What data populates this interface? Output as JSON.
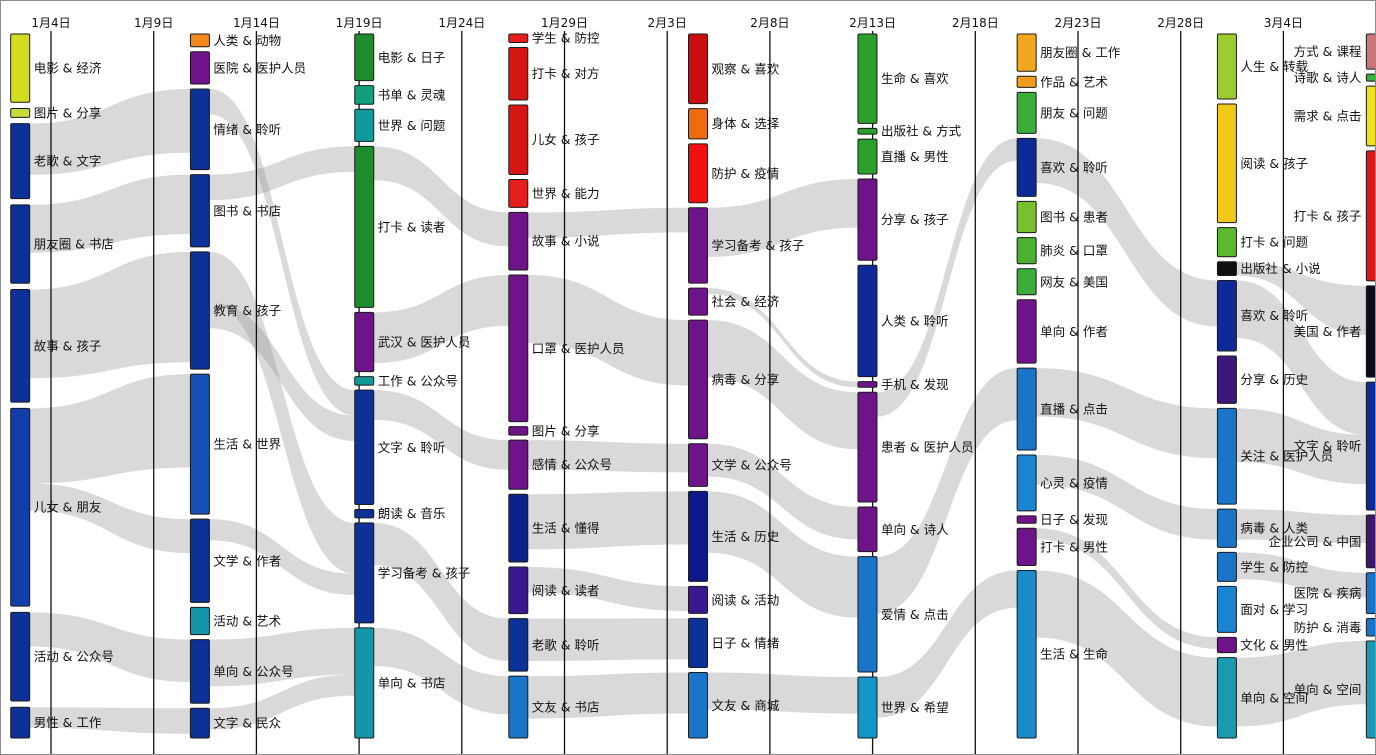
{
  "chart_data": {
    "type": "sankey",
    "axis": {
      "dates": [
        "1月4日",
        "1月9日",
        "1月14日",
        "1月19日",
        "1月24日",
        "1月29日",
        "2月3日",
        "2月8日",
        "2月13日",
        "2月18日",
        "2月23日",
        "2月28日",
        "3月4日"
      ]
    },
    "columns": [
      {
        "date": "1月4日",
        "nodes": [
          {
            "label": "电影 & 经济",
            "value": 1.0,
            "color": "#d4dc20"
          },
          {
            "label": "图片 & 分享",
            "value": 0.13,
            "color": "#c8da3c"
          },
          {
            "label": "老歌 & 文字",
            "value": 1.1,
            "color": "#0d3196"
          },
          {
            "label": "朋友圈 & 书店",
            "value": 1.15,
            "color": "#0d3196"
          },
          {
            "label": "故事 & 孩子",
            "value": 1.65,
            "color": "#0d3196"
          },
          {
            "label": "儿女 & 朋友",
            "value": 2.9,
            "color": "#123ca8"
          },
          {
            "label": "活动 & 公众号",
            "value": 1.3,
            "color": "#0d3196"
          },
          {
            "label": "男性 & 工作",
            "value": 0.45,
            "color": "#0d3196"
          }
        ]
      },
      {
        "date": "1月14日",
        "nodes": [
          {
            "label": "人类 & 动物",
            "value": 0.15,
            "color": "#f08a1a"
          },
          {
            "label": "医院 & 医护人员",
            "value": 0.38,
            "color": "#6d1489"
          },
          {
            "label": "情绪 & 聆听",
            "value": 0.95,
            "color": "#0d3196"
          },
          {
            "label": "图书 & 书店",
            "value": 0.85,
            "color": "#0d3196"
          },
          {
            "label": "教育 & 孩子",
            "value": 1.38,
            "color": "#0d3196"
          },
          {
            "label": "生活 & 世界",
            "value": 1.65,
            "color": "#1a4fb5"
          },
          {
            "label": "文学 & 作者",
            "value": 0.98,
            "color": "#0d3196"
          },
          {
            "label": "活动 & 艺术",
            "value": 0.32,
            "color": "#1496a8"
          },
          {
            "label": "单向 & 公众号",
            "value": 0.75,
            "color": "#0d3196"
          },
          {
            "label": "文字 & 民众",
            "value": 0.35,
            "color": "#0d3196"
          }
        ]
      },
      {
        "date": "1月19日",
        "nodes": [
          {
            "label": "电影 & 日子",
            "value": 0.55,
            "color": "#1e8c2c"
          },
          {
            "label": "书单 & 灵魂",
            "value": 0.22,
            "color": "#12a07a"
          },
          {
            "label": "世界 & 问题",
            "value": 0.38,
            "color": "#109a9a"
          },
          {
            "label": "打卡 & 读者",
            "value": 1.9,
            "color": "#1e8c2c"
          },
          {
            "label": "武汉 & 医护人员",
            "value": 0.7,
            "color": "#6d1489"
          },
          {
            "label": "工作 & 公众号",
            "value": 0.1,
            "color": "#109a9a"
          },
          {
            "label": "文字 & 聆听",
            "value": 1.35,
            "color": "#0d3196"
          },
          {
            "label": "朗读 & 音乐",
            "value": 0.1,
            "color": "#0d3196"
          },
          {
            "label": "学习备考 & 孩子",
            "value": 1.18,
            "color": "#0d3196"
          },
          {
            "label": "单向 & 书店",
            "value": 1.3,
            "color": "#1496a8"
          }
        ]
      },
      {
        "date": "1月29日",
        "nodes": [
          {
            "label": "学生 & 防控",
            "value": 0.1,
            "color": "#e41e1e"
          },
          {
            "label": "打卡 & 对方",
            "value": 0.62,
            "color": "#d71515"
          },
          {
            "label": "儿女 & 孩子",
            "value": 0.82,
            "color": "#d71515"
          },
          {
            "label": "世界 & 能力",
            "value": 0.33,
            "color": "#e41e1e"
          },
          {
            "label": "故事 & 小说",
            "value": 0.68,
            "color": "#6d1489"
          },
          {
            "label": "口罩 & 医护人员",
            "value": 1.73,
            "color": "#6d1489"
          },
          {
            "label": "图片 & 分享",
            "value": 0.1,
            "color": "#6d1489"
          },
          {
            "label": "感情 & 公众号",
            "value": 0.58,
            "color": "#6d1489"
          },
          {
            "label": "生活 & 懂得",
            "value": 0.8,
            "color": "#0d2288"
          },
          {
            "label": "阅读 & 读者",
            "value": 0.55,
            "color": "#3a1890"
          },
          {
            "label": "老歌 & 聆听",
            "value": 0.62,
            "color": "#0d3196"
          },
          {
            "label": "文友 & 书店",
            "value": 0.73,
            "color": "#1a74c8"
          }
        ]
      },
      {
        "date": "2月3日",
        "nodes": [
          {
            "label": "观察 & 喜欢",
            "value": 0.85,
            "color": "#c80e0e"
          },
          {
            "label": "身体 & 选择",
            "value": 0.37,
            "color": "#f06a10"
          },
          {
            "label": "防护 & 疫情",
            "value": 0.72,
            "color": "#f01010"
          },
          {
            "label": "学习备考 & 孩子",
            "value": 0.92,
            "color": "#6d1489"
          },
          {
            "label": "社会 & 经济",
            "value": 0.33,
            "color": "#6d1489"
          },
          {
            "label": "病毒 & 分享",
            "value": 1.45,
            "color": "#6d1489"
          },
          {
            "label": "文学 & 公众号",
            "value": 0.52,
            "color": "#6d1489"
          },
          {
            "label": "生活 & 历史",
            "value": 1.1,
            "color": "#0d1888"
          },
          {
            "label": "阅读 & 活动",
            "value": 0.33,
            "color": "#3a1890"
          },
          {
            "label": "日子 & 情绪",
            "value": 0.6,
            "color": "#0d3196"
          },
          {
            "label": "文友 & 商城",
            "value": 0.8,
            "color": "#1a74c8"
          }
        ]
      },
      {
        "date": "2月13日",
        "nodes": [
          {
            "label": "生命 & 喜欢",
            "value": 1.1,
            "color": "#2ca02c"
          },
          {
            "label": "出版社 & 方式",
            "value": 0.07,
            "color": "#2ca02c"
          },
          {
            "label": "直播 & 男性",
            "value": 0.43,
            "color": "#2ca02c"
          },
          {
            "label": "分享 & 孩子",
            "value": 1.0,
            "color": "#6d1489"
          },
          {
            "label": "人类 & 聆听",
            "value": 1.37,
            "color": "#0d2a96"
          },
          {
            "label": "手机 & 发现",
            "value": 0.07,
            "color": "#6d1489"
          },
          {
            "label": "患者 & 医护人员",
            "value": 1.35,
            "color": "#6d1489"
          },
          {
            "label": "单向 & 诗人",
            "value": 0.55,
            "color": "#6d1489"
          },
          {
            "label": "爱情 & 点击",
            "value": 1.42,
            "color": "#1a74c8"
          },
          {
            "label": "世界 & 希望",
            "value": 0.75,
            "color": "#1496c8"
          }
        ]
      },
      {
        "date": "2月18日",
        "nodes": [
          {
            "label": "朋友圈 & 工作",
            "value": 0.5,
            "color": "#f0a81e"
          },
          {
            "label": "作品 & 艺术",
            "value": 0.15,
            "color": "#f09a1e"
          },
          {
            "label": "朋友 & 问题",
            "value": 0.55,
            "color": "#3cac3c"
          },
          {
            "label": "喜欢 & 聆听",
            "value": 0.78,
            "color": "#0d2a96"
          },
          {
            "label": "图书 & 患者",
            "value": 0.42,
            "color": "#78c030"
          },
          {
            "label": "肺炎 & 口罩",
            "value": 0.35,
            "color": "#4cb030"
          },
          {
            "label": "网友 & 美国",
            "value": 0.35,
            "color": "#3cac3c"
          },
          {
            "label": "单向 & 作者",
            "value": 0.85,
            "color": "#6d1489"
          },
          {
            "label": "直播 & 点击",
            "value": 1.1,
            "color": "#1a74c8"
          },
          {
            "label": "心灵 & 疫情",
            "value": 0.75,
            "color": "#1a84d0"
          },
          {
            "label": "日子 & 发现",
            "value": 0.1,
            "color": "#6d1489"
          },
          {
            "label": "打卡 & 男性",
            "value": 0.5,
            "color": "#6d1489"
          },
          {
            "label": "生活 & 生命",
            "value": 2.25,
            "color": "#1a8cc8"
          }
        ]
      },
      {
        "date": "2月28日",
        "nodes": [
          {
            "label": "人生 & 转载",
            "value": 0.85,
            "color": "#9ccc30"
          },
          {
            "label": "阅读 & 孩子",
            "value": 1.55,
            "color": "#f0c818"
          },
          {
            "label": "打卡 & 问题",
            "value": 0.38,
            "color": "#5cb82c"
          },
          {
            "label": "出版社 & 小说",
            "value": 0.18,
            "color": "#101010"
          },
          {
            "label": "喜欢 & 聆听",
            "value": 0.92,
            "color": "#0d2a96"
          },
          {
            "label": "分享 & 历史",
            "value": 0.62,
            "color": "#3c1878"
          },
          {
            "label": "关注 & 医护人员",
            "value": 1.25,
            "color": "#1a74c8"
          },
          {
            "label": "病毒 & 人类",
            "value": 0.5,
            "color": "#1a74c8"
          },
          {
            "label": "学生 & 防控",
            "value": 0.38,
            "color": "#1a74c8"
          },
          {
            "label": "面对 & 学习",
            "value": 0.6,
            "color": "#1a84d0"
          },
          {
            "label": "文化 & 男性",
            "value": 0.2,
            "color": "#6d1489"
          },
          {
            "label": "单向 & 空间",
            "value": 1.05,
            "color": "#1a9ab0"
          }
        ]
      },
      {
        "date": "3月4日",
        "nodes": [
          {
            "label": "方式 & 课程",
            "value": 0.5,
            "color": "#c87878"
          },
          {
            "label": "诗歌 & 诗人",
            "value": 0.1,
            "color": "#3cac3c"
          },
          {
            "label": "需求 & 点击",
            "value": 0.85,
            "color": "#f0e028"
          },
          {
            "label": "打卡 & 孩子",
            "value": 1.85,
            "color": "#d41e1e"
          },
          {
            "label": "美国 & 作者",
            "value": 1.3,
            "color": "#0e0a1a"
          },
          {
            "label": "文字 & 聆听",
            "value": 1.82,
            "color": "#0d2a96"
          },
          {
            "label": "企业公司 & 中国",
            "value": 0.75,
            "color": "#3c1868"
          },
          {
            "label": "医院 & 疾病",
            "value": 0.58,
            "color": "#1a74c8"
          },
          {
            "label": "防护 & 消毒",
            "value": 0.25,
            "color": "#1a74c8"
          },
          {
            "label": "单向 & 空间",
            "value": 1.38,
            "color": "#1a9ab0"
          }
        ]
      }
    ],
    "links": [
      {
        "source": [
          0,
          2
        ],
        "target": [
          1,
          2
        ],
        "value": 0.75
      },
      {
        "source": [
          0,
          3
        ],
        "target": [
          1,
          3
        ],
        "value": 0.7
      },
      {
        "source": [
          0,
          4
        ],
        "target": [
          1,
          4
        ],
        "value": 1.3
      },
      {
        "source": [
          0,
          5
        ],
        "target": [
          1,
          5
        ],
        "value": 1.1
      },
      {
        "source": [
          0,
          5
        ],
        "target": [
          1,
          6
        ],
        "value": 0.4
      },
      {
        "source": [
          0,
          6
        ],
        "target": [
          1,
          8
        ],
        "value": 0.5
      },
      {
        "source": [
          0,
          7
        ],
        "target": [
          1,
          9
        ],
        "value": 0.3
      },
      {
        "source": [
          1,
          2
        ],
        "target": [
          2,
          6
        ],
        "value": 0.3
      },
      {
        "source": [
          1,
          3
        ],
        "target": [
          2,
          3
        ],
        "value": 0.3
      },
      {
        "source": [
          1,
          4
        ],
        "target": [
          2,
          8
        ],
        "value": 0.6
      },
      {
        "source": [
          1,
          4
        ],
        "target": [
          2,
          6
        ],
        "value": 0.3
      },
      {
        "source": [
          1,
          6
        ],
        "target": [
          2,
          8
        ],
        "value": 0.25
      },
      {
        "source": [
          1,
          8
        ],
        "target": [
          2,
          9
        ],
        "value": 0.55
      },
      {
        "source": [
          1,
          9
        ],
        "target": [
          2,
          9
        ],
        "value": 0.25
      },
      {
        "source": [
          2,
          3
        ],
        "target": [
          3,
          4
        ],
        "value": 0.4
      },
      {
        "source": [
          2,
          4
        ],
        "target": [
          3,
          5
        ],
        "value": 0.6
      },
      {
        "source": [
          2,
          6
        ],
        "target": [
          3,
          7
        ],
        "value": 0.35
      },
      {
        "source": [
          2,
          8
        ],
        "target": [
          3,
          10
        ],
        "value": 0.5
      },
      {
        "source": [
          2,
          9
        ],
        "target": [
          3,
          11
        ],
        "value": 0.45
      },
      {
        "source": [
          3,
          5
        ],
        "target": [
          4,
          5
        ],
        "value": 0.8
      },
      {
        "source": [
          3,
          4
        ],
        "target": [
          4,
          3
        ],
        "value": 0.3
      },
      {
        "source": [
          3,
          7
        ],
        "target": [
          4,
          6
        ],
        "value": 0.35
      },
      {
        "source": [
          3,
          8
        ],
        "target": [
          4,
          7
        ],
        "value": 0.65
      },
      {
        "source": [
          3,
          10
        ],
        "target": [
          4,
          9
        ],
        "value": 0.5
      },
      {
        "source": [
          3,
          11
        ],
        "target": [
          4,
          10
        ],
        "value": 0.5
      },
      {
        "source": [
          3,
          9
        ],
        "target": [
          4,
          8
        ],
        "value": 0.3
      },
      {
        "source": [
          4,
          3
        ],
        "target": [
          5,
          3
        ],
        "value": 0.6
      },
      {
        "source": [
          4,
          5
        ],
        "target": [
          5,
          6
        ],
        "value": 0.7
      },
      {
        "source": [
          4,
          4
        ],
        "target": [
          5,
          5
        ],
        "value": 0.07
      },
      {
        "source": [
          4,
          6
        ],
        "target": [
          5,
          7
        ],
        "value": 0.4
      },
      {
        "source": [
          4,
          7
        ],
        "target": [
          5,
          8
        ],
        "value": 0.75
      },
      {
        "source": [
          4,
          10
        ],
        "target": [
          5,
          9
        ],
        "value": 0.45
      },
      {
        "source": [
          5,
          8
        ],
        "target": [
          6,
          8
        ],
        "value": 0.7
      },
      {
        "source": [
          5,
          6
        ],
        "target": [
          6,
          3
        ],
        "value": 0.3
      },
      {
        "source": [
          5,
          9
        ],
        "target": [
          6,
          12
        ],
        "value": 0.5
      },
      {
        "source": [
          6,
          3
        ],
        "target": [
          7,
          4
        ],
        "value": 0.6
      },
      {
        "source": [
          6,
          8
        ],
        "target": [
          7,
          6
        ],
        "value": 0.65
      },
      {
        "source": [
          6,
          9
        ],
        "target": [
          7,
          7
        ],
        "value": 0.4
      },
      {
        "source": [
          6,
          12
        ],
        "target": [
          7,
          11
        ],
        "value": 0.9
      },
      {
        "source": [
          6,
          11
        ],
        "target": [
          7,
          10
        ],
        "value": 0.15
      },
      {
        "source": [
          7,
          3
        ],
        "target": [
          8,
          4
        ],
        "value": 0.7
      },
      {
        "source": [
          7,
          4
        ],
        "target": [
          8,
          5
        ],
        "value": 0.75
      },
      {
        "source": [
          7,
          6
        ],
        "target": [
          8,
          5
        ],
        "value": 0.7
      },
      {
        "source": [
          7,
          7
        ],
        "target": [
          8,
          6
        ],
        "value": 0.4
      },
      {
        "source": [
          7,
          8
        ],
        "target": [
          8,
          7
        ],
        "value": 0.35
      },
      {
        "source": [
          7,
          11
        ],
        "target": [
          8,
          9
        ],
        "value": 0.9
      }
    ]
  }
}
